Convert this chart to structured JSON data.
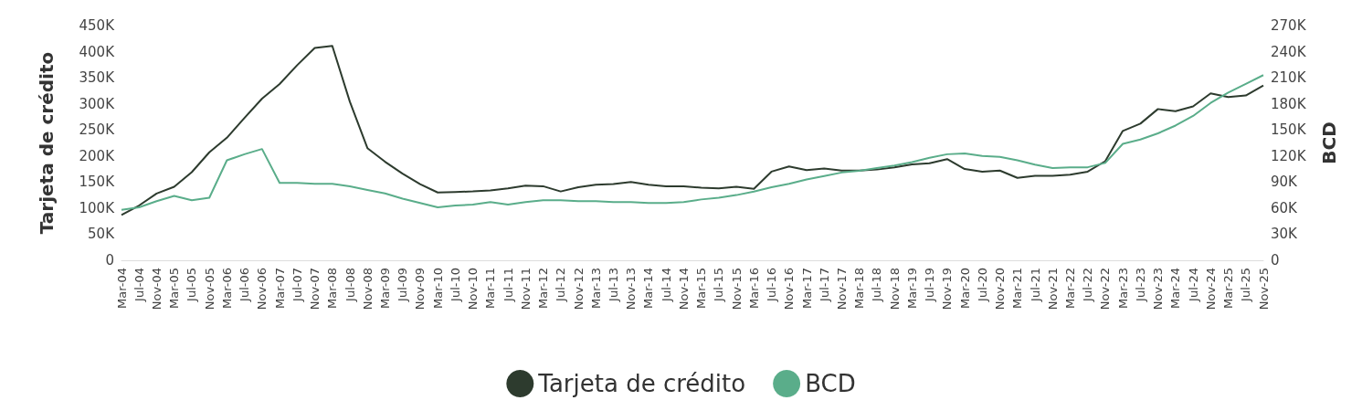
{
  "chart_data": {
    "type": "line",
    "ylabel": "Tarjeta de crédito",
    "y2label": "BCD",
    "categories": [
      "Mar-04",
      "Jul-04",
      "Nov-04",
      "Mar-05",
      "Jul-05",
      "Nov-05",
      "Mar-06",
      "Jul-06",
      "Nov-06",
      "Mar-07",
      "Jul-07",
      "Nov-07",
      "Mar-08",
      "Jul-08",
      "Nov-08",
      "Mar-09",
      "Jul-09",
      "Nov-09",
      "Mar-10",
      "Jul-10",
      "Nov-10",
      "Mar-11",
      "Jul-11",
      "Nov-11",
      "Mar-12",
      "Jul-12",
      "Nov-12",
      "Mar-13",
      "Jul-13",
      "Nov-13",
      "Mar-14",
      "Jul-14",
      "Nov-14",
      "Mar-15",
      "Jul-15",
      "Nov-15",
      "Mar-16",
      "Jul-16",
      "Nov-16",
      "Mar-17",
      "Jul-17",
      "Nov-17",
      "Mar-18",
      "Jul-18",
      "Nov-18",
      "Mar-19",
      "Jul-19",
      "Nov-19",
      "Mar-20",
      "Jul-20",
      "Nov-20",
      "Mar-21",
      "Jul-21",
      "Nov-21",
      "Mar-22",
      "Jul-22",
      "Nov-22",
      "Mar-23",
      "Jul-23",
      "Nov-23",
      "Mar-24",
      "Jul-24",
      "Nov-24",
      "Mar-25",
      "Jul-25",
      "Nov-25"
    ],
    "series": [
      {
        "name": "Tarjeta de crédito",
        "color": "#2d3b2e",
        "values": [
          87000,
          105000,
          128000,
          141000,
          169000,
          207000,
          235000,
          273000,
          310000,
          338000,
          374000,
          407000,
          411000,
          304000,
          215000,
          189000,
          166000,
          146000,
          130000,
          131000,
          132000,
          134000,
          138000,
          143000,
          142000,
          132000,
          140000,
          145000,
          146000,
          150000,
          145000,
          142000,
          142000,
          139000,
          138000,
          141000,
          137000,
          170000,
          180000,
          173000,
          176000,
          172000,
          172000,
          174000,
          178000,
          184000,
          186000,
          194000,
          175000,
          170000,
          172000,
          158000,
          162000,
          162000,
          164000,
          170000,
          190000,
          248000,
          262000,
          290000,
          286000,
          295000,
          320000,
          313000,
          316000,
          335000
        ]
      },
      {
        "name": "BCD",
        "color": "#5aad8a",
        "axis": "y2",
        "values": [
          58000,
          61000,
          68000,
          74000,
          69000,
          72000,
          115000,
          122000,
          128000,
          89000,
          89000,
          88000,
          88000,
          85000,
          81000,
          77000,
          71000,
          66000,
          61000,
          63000,
          64000,
          67000,
          64000,
          67000,
          69000,
          69000,
          68000,
          68000,
          67000,
          67000,
          66000,
          66000,
          67000,
          70000,
          72000,
          75000,
          79000,
          84000,
          88000,
          93000,
          97000,
          101000,
          103000,
          106000,
          109000,
          113000,
          118000,
          122000,
          123000,
          120000,
          119000,
          115000,
          110000,
          106000,
          107000,
          107000,
          112000,
          134000,
          139000,
          146000,
          155000,
          166000,
          181000,
          193000,
          203000,
          213000
        ]
      }
    ],
    "ylim": [
      0,
      450000
    ],
    "yticks": [
      0,
      {
        "value": 50000,
        "label": "50K"
      },
      {
        "value": 100000,
        "label": "100K"
      },
      {
        "value": 150000,
        "label": "150K"
      },
      {
        "value": 200000,
        "label": "200K"
      },
      {
        "value": 250000,
        "label": "250K"
      },
      {
        "value": 300000,
        "label": "300K"
      },
      {
        "value": 350000,
        "label": "350K"
      },
      {
        "value": 400000,
        "label": "400K"
      },
      {
        "value": 450000,
        "label": "450K"
      }
    ],
    "y2lim": [
      0,
      270000
    ],
    "y2ticks": [
      0,
      {
        "value": 30000,
        "label": "30K"
      },
      {
        "value": 60000,
        "label": "60K"
      },
      {
        "value": 90000,
        "label": "90K"
      },
      {
        "value": 120000,
        "label": "120K"
      },
      {
        "value": 150000,
        "label": "150K"
      },
      {
        "value": 180000,
        "label": "180K"
      },
      {
        "value": 210000,
        "label": "210K"
      },
      {
        "value": 240000,
        "label": "240K"
      },
      {
        "value": 270000,
        "label": "270K"
      }
    ],
    "grid": false,
    "legend": "bottom",
    "marker": "none",
    "line_style": "solid"
  }
}
